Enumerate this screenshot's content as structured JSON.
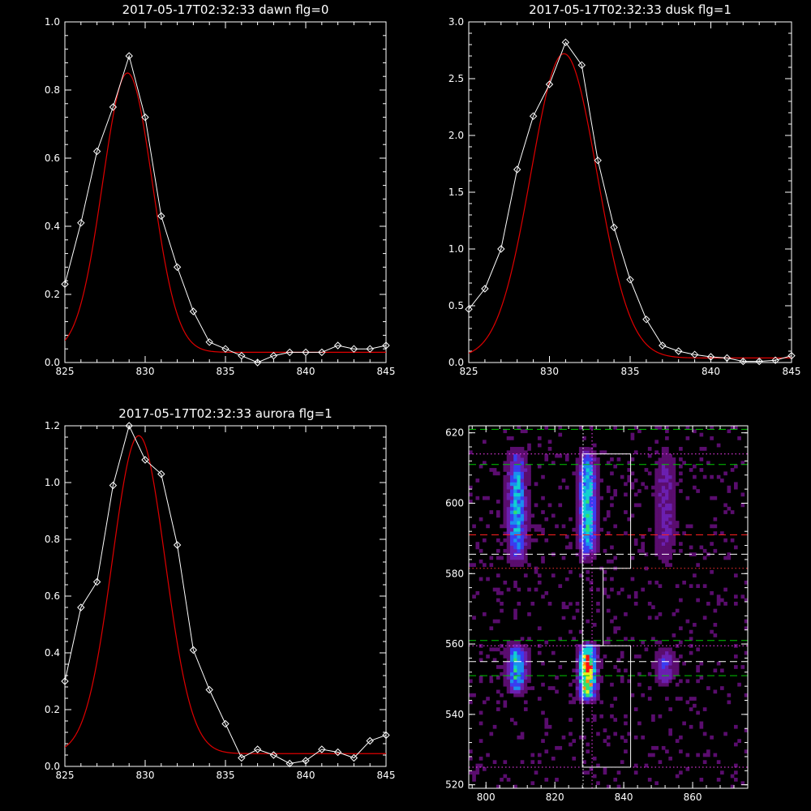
{
  "chart_data": [
    {
      "type": "line",
      "title": "2017-05-17T02:32:33 dawn flg=0",
      "xlim": [
        825,
        845
      ],
      "ylim": [
        0,
        1.0
      ],
      "xticks": [
        825,
        830,
        835,
        840,
        845
      ],
      "yticks": [
        0.0,
        0.2,
        0.4,
        0.6,
        0.8,
        1.0
      ],
      "xticklabels": [
        "825",
        "830",
        "835",
        "840",
        "845"
      ],
      "yticklabels": [
        "0.0",
        "0.2",
        "0.4",
        "0.6",
        "0.8",
        "1.0"
      ],
      "grid": false,
      "series": [
        {
          "color": "#ffffff",
          "markers": "diamond",
          "x": [
            825,
            826,
            827,
            828,
            829,
            830,
            831,
            832,
            833,
            834,
            835,
            836,
            837,
            838,
            839,
            840,
            841,
            842,
            843,
            844,
            845
          ],
          "y": [
            0.23,
            0.41,
            0.62,
            0.75,
            0.9,
            0.72,
            0.43,
            0.28,
            0.15,
            0.06,
            0.04,
            0.02,
            0.0,
            0.02,
            0.03,
            0.03,
            0.03,
            0.05,
            0.04,
            0.04,
            0.05
          ]
        },
        {
          "color": "#e00000",
          "markers": "none",
          "fit": "gaussian",
          "amplitude": 0.82,
          "center": 828.9,
          "sigma": 1.55,
          "offset": 0.03
        }
      ]
    },
    {
      "type": "line",
      "title": "2017-05-17T02:32:33 dusk flg=1",
      "xlim": [
        825,
        845
      ],
      "ylim": [
        0,
        3.0
      ],
      "xticks": [
        825,
        830,
        835,
        840,
        845
      ],
      "yticks": [
        0.0,
        0.5,
        1.0,
        1.5,
        2.0,
        2.5,
        3.0
      ],
      "xticklabels": [
        "825",
        "830",
        "835",
        "840",
        "845"
      ],
      "yticklabels": [
        "0.0",
        "0.5",
        "1.0",
        "1.5",
        "2.0",
        "2.5",
        "3.0"
      ],
      "grid": false,
      "series": [
        {
          "color": "#ffffff",
          "markers": "diamond",
          "x": [
            825,
            826,
            827,
            828,
            829,
            830,
            831,
            832,
            833,
            834,
            835,
            836,
            837,
            838,
            839,
            840,
            841,
            842,
            843,
            844,
            845
          ],
          "y": [
            0.47,
            0.65,
            1.0,
            1.7,
            2.17,
            2.45,
            2.82,
            2.62,
            1.78,
            1.19,
            0.73,
            0.38,
            0.15,
            0.1,
            0.07,
            0.05,
            0.04,
            0.01,
            0.01,
            0.02,
            0.06
          ]
        },
        {
          "color": "#e00000",
          "markers": "none",
          "fit": "gaussian",
          "amplitude": 2.68,
          "center": 830.9,
          "sigma": 2.05,
          "offset": 0.04
        }
      ]
    },
    {
      "type": "line",
      "title": "2017-05-17T02:32:33 aurora flg=1",
      "xlim": [
        825,
        845
      ],
      "ylim": [
        0,
        1.2
      ],
      "xticks": [
        825,
        830,
        835,
        840,
        845
      ],
      "yticks": [
        0.0,
        0.2,
        0.4,
        0.6,
        0.8,
        1.0,
        1.2
      ],
      "xticklabels": [
        "825",
        "830",
        "835",
        "840",
        "845"
      ],
      "yticklabels": [
        "0.0",
        "0.2",
        "0.4",
        "0.6",
        "0.8",
        "1.0",
        "1.2"
      ],
      "grid": false,
      "series": [
        {
          "color": "#ffffff",
          "markers": "diamond",
          "x": [
            825,
            826,
            827,
            828,
            829,
            830,
            831,
            832,
            833,
            834,
            835,
            836,
            837,
            838,
            839,
            840,
            841,
            842,
            843,
            844,
            845
          ],
          "y": [
            0.3,
            0.56,
            0.65,
            0.99,
            1.2,
            1.08,
            1.03,
            0.78,
            0.41,
            0.27,
            0.15,
            0.03,
            0.06,
            0.04,
            0.01,
            0.02,
            0.06,
            0.05,
            0.03,
            0.09,
            0.11
          ]
        },
        {
          "color": "#e00000",
          "markers": "none",
          "fit": "gaussian",
          "amplitude": 1.12,
          "center": 829.6,
          "sigma": 1.65,
          "offset": 0.045
        }
      ]
    },
    {
      "type": "heatmap",
      "title": "",
      "xlim": [
        795,
        876
      ],
      "ylim": [
        519,
        622
      ],
      "xticks": [
        800,
        820,
        840,
        860
      ],
      "yticks": [
        520,
        540,
        560,
        580,
        600,
        620
      ],
      "xticklabels": [
        "800",
        "820",
        "840",
        "860"
      ],
      "yticklabels": [
        "520",
        "540",
        "560",
        "580",
        "600",
        "620"
      ],
      "grid": false,
      "colormap": [
        "#000000",
        "#5a0d6e",
        "#6b1fb0",
        "#3a3cf0",
        "#1a8ef0",
        "#10d0d0",
        "#30e070",
        "#e8f020",
        "#ff9010",
        "#ff1010"
      ],
      "emission_columns": [
        {
          "x_center": 809,
          "x_halfwidth": 3.2,
          "bands": [
            {
              "y_from": 582,
              "y_to": 616,
              "peak": 0.55
            },
            {
              "y_from": 546,
              "y_to": 560,
              "peak": 0.58
            }
          ]
        },
        {
          "x_center": 829.5,
          "x_halfwidth": 3.0,
          "bands": [
            {
              "y_from": 583,
              "y_to": 616,
              "peak": 0.62
            },
            {
              "y_from": 544,
              "y_to": 560,
              "peak": 0.97
            }
          ]
        },
        {
          "x_center": 852,
          "x_halfwidth": 3.4,
          "bands": [
            {
              "y_from": 582,
              "y_to": 616,
              "peak": 0.22
            },
            {
              "y_from": 549,
              "y_to": 558,
              "peak": 0.32
            }
          ]
        }
      ],
      "background_noise": 0.06,
      "overlays": {
        "horizontal_lines": [
          {
            "y": 621,
            "color": "#00c800",
            "style": "dashed"
          },
          {
            "y": 611,
            "color": "#00c800",
            "style": "dashed"
          },
          {
            "y": 614,
            "color": "#ff40ff",
            "style": "dotted"
          },
          {
            "y": 591,
            "color": "#ff2020",
            "style": "dashed"
          },
          {
            "y": 585.5,
            "color": "#ffffff",
            "style": "dashed"
          },
          {
            "y": 581.5,
            "color": "#ff3030",
            "style": "dotted"
          },
          {
            "y": 561,
            "color": "#00c800",
            "style": "dashed"
          },
          {
            "y": 559.5,
            "color": "#ff40ff",
            "style": "dotted"
          },
          {
            "y": 555,
            "color": "#ffffff",
            "style": "dashed"
          },
          {
            "y": 551,
            "color": "#00c800",
            "style": "dashed"
          },
          {
            "y": 525,
            "color": "#ff40ff",
            "style": "dotted"
          }
        ],
        "vertical_lines": [
          {
            "x": 828.2,
            "color": "#ffffff",
            "style": "dotted"
          },
          {
            "x": 830.8,
            "color": "#ff40ff",
            "style": "dotted"
          }
        ],
        "boxes": [
          {
            "x0": 828,
            "x1": 842,
            "y0": 581.5,
            "y1": 614,
            "color": "#ffffff"
          },
          {
            "x0": 828,
            "x1": 834,
            "y0": 559.5,
            "y1": 581.5,
            "color": "#ffffff"
          },
          {
            "x0": 828,
            "x1": 842,
            "y0": 525,
            "y1": 559.5,
            "color": "#ffffff"
          }
        ]
      }
    }
  ]
}
